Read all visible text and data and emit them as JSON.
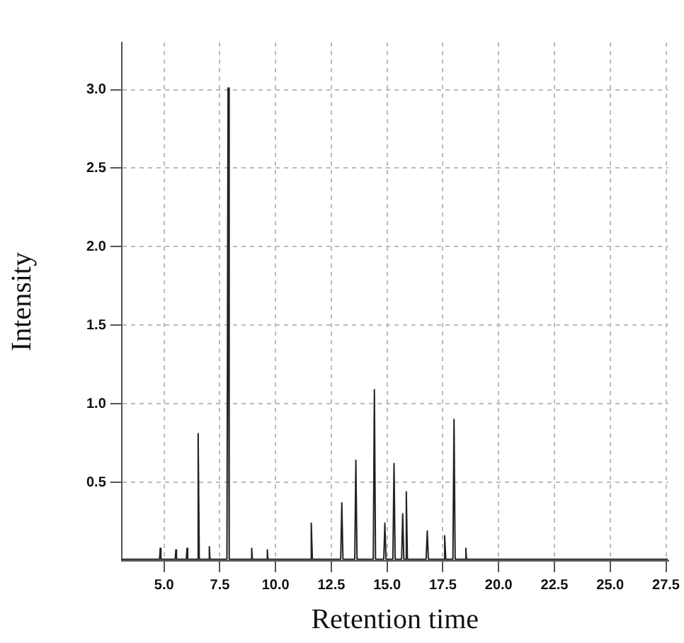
{
  "chart_data": {
    "type": "line",
    "xlabel": "Retention time",
    "ylabel": "Intensity",
    "x": [
      3.1,
      4.8,
      4.83,
      4.86,
      5.5,
      5.53,
      5.56,
      6.0,
      6.03,
      6.06,
      6.48,
      6.53,
      6.58,
      7.0,
      7.03,
      7.06,
      7.82,
      7.87,
      7.92,
      8.9,
      8.93,
      8.96,
      9.6,
      9.63,
      9.66,
      11.55,
      11.6,
      11.65,
      12.92,
      12.97,
      13.02,
      13.55,
      13.6,
      13.65,
      14.38,
      14.43,
      14.48,
      14.85,
      14.9,
      14.95,
      15.26,
      15.31,
      15.36,
      15.65,
      15.7,
      15.75,
      15.81,
      15.86,
      15.91,
      16.75,
      16.8,
      16.85,
      17.53,
      17.58,
      17.63,
      17.95,
      18.0,
      18.05,
      18.5,
      18.53,
      18.56,
      20.0,
      27.6
    ],
    "series": [
      {
        "color": "#222222",
        "values": [
          0.01,
          0.01,
          0.08,
          0.01,
          0.01,
          0.07,
          0.01,
          0.01,
          0.08,
          0.01,
          0.01,
          0.81,
          0.01,
          0.01,
          0.09,
          0.01,
          0.01,
          3.01,
          0.01,
          0.01,
          0.08,
          0.01,
          0.01,
          0.07,
          0.01,
          0.01,
          0.24,
          0.01,
          0.01,
          0.37,
          0.01,
          0.01,
          0.64,
          0.01,
          0.01,
          1.09,
          0.01,
          0.01,
          0.24,
          0.01,
          0.01,
          0.62,
          0.01,
          0.01,
          0.3,
          0.01,
          0.01,
          0.44,
          0.01,
          0.01,
          0.19,
          0.01,
          0.01,
          0.16,
          0.01,
          0.01,
          0.9,
          0.01,
          0.01,
          0.08,
          0.01,
          0.01,
          0.01
        ]
      }
    ],
    "xlim": [
      3.1,
      27.6
    ],
    "ylim": [
      0,
      3.3
    ],
    "xticks": [
      {
        "value": 5,
        "label": "5.0"
      },
      7.5,
      {
        "value": 10,
        "label": "10.0"
      },
      12.5,
      {
        "value": 15,
        "label": "15.0"
      },
      17.5,
      {
        "value": 20,
        "label": "20.0"
      },
      22.5,
      {
        "value": 25,
        "label": "25.0"
      },
      27.5
    ],
    "yticks": [
      0.5,
      {
        "value": 1,
        "label": "1.0"
      },
      1.5,
      {
        "value": 2,
        "label": "2.0"
      },
      2.5,
      {
        "value": 3,
        "label": "3.0"
      }
    ],
    "grid": true,
    "legend": false,
    "marker": "none",
    "line_style": "solid"
  }
}
